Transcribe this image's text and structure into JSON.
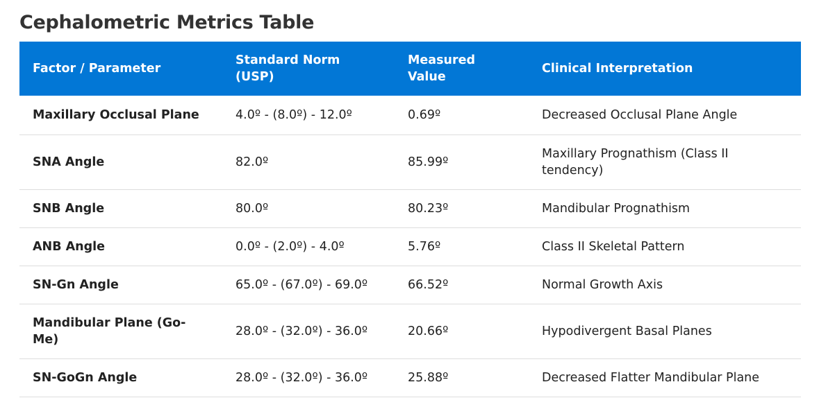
{
  "page": {
    "title": "Cephalometric Metrics Table"
  },
  "table": {
    "headers": [
      "Factor / Parameter",
      "Standard Norm (USP)",
      "Measured Value",
      "Clinical Interpretation"
    ],
    "rows": [
      {
        "factor": "Maxillary Occlusal Plane",
        "norm": "4.0º - (8.0º) - 12.0º",
        "measured": "0.69º",
        "interpretation": "Decreased Occlusal Plane Angle"
      },
      {
        "factor": "SNA Angle",
        "norm": "82.0º",
        "measured": "85.99º",
        "interpretation": "Maxillary Prognathism (Class II tendency)"
      },
      {
        "factor": "SNB Angle",
        "norm": "80.0º",
        "measured": "80.23º",
        "interpretation": "Mandibular Prognathism"
      },
      {
        "factor": "ANB Angle",
        "norm": "0.0º - (2.0º) - 4.0º",
        "measured": "5.76º",
        "interpretation": "Class II Skeletal Pattern"
      },
      {
        "factor": "SN-Gn Angle",
        "norm": "65.0º - (67.0º) - 69.0º",
        "measured": "66.52º",
        "interpretation": "Normal Growth Axis"
      },
      {
        "factor": "Mandibular Plane (Go-Me)",
        "norm": "28.0º - (32.0º) - 36.0º",
        "measured": "20.66º",
        "interpretation": "Hypodivergent Basal Planes"
      },
      {
        "factor": "SN-GoGn Angle",
        "norm": "28.0º - (32.0º) - 36.0º",
        "measured": "25.88º",
        "interpretation": "Decreased Flatter Mandibular Plane"
      }
    ]
  },
  "colors": {
    "header_bg": "#0277d6",
    "header_text": "#ffffff",
    "row_divider": "#dddddd",
    "title_text": "#333333"
  }
}
